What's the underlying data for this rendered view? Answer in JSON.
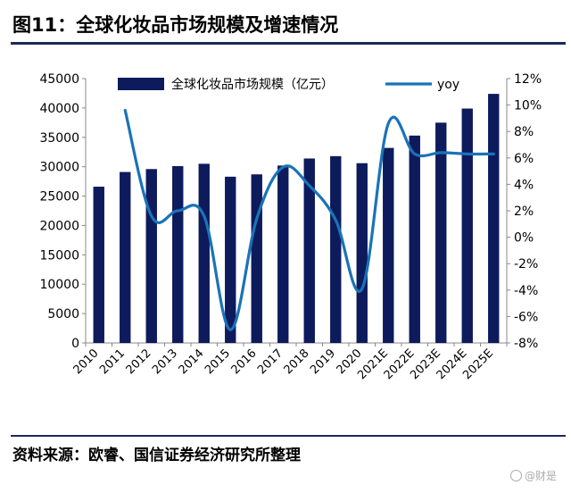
{
  "figure": {
    "title": "图11：全球化妆品市场规模及增速情况",
    "source": "资料来源：欧睿、国信证券经济研究所整理",
    "watermark": "@财是"
  },
  "colors": {
    "bar": "#0d1b5c",
    "line": "#1a73b7",
    "axis": "#888888",
    "rule": "#1b2a5c"
  },
  "chart_data": {
    "type": "bar",
    "categories": [
      "2010",
      "2011",
      "2012",
      "2013",
      "2014",
      "2015",
      "2016",
      "2017",
      "2018",
      "2019",
      "2020",
      "2021E",
      "2022E",
      "2023E",
      "2024E",
      "2025E"
    ],
    "series": [
      {
        "name": "全球化妆品市场规模（亿元）",
        "type": "bar",
        "axis": "left",
        "values": [
          26600,
          29100,
          29600,
          30100,
          30500,
          28300,
          28700,
          30200,
          31400,
          31800,
          30600,
          33200,
          35300,
          37500,
          39900,
          42400
        ]
      },
      {
        "name": "yoy",
        "type": "line",
        "axis": "right",
        "values": [
          null,
          9.6,
          1.6,
          2.0,
          1.6,
          -7.0,
          1.4,
          5.3,
          3.9,
          1.3,
          -3.9,
          8.6,
          6.3,
          6.4,
          6.3,
          6.3
        ]
      }
    ],
    "y_left": {
      "lim": [
        0,
        45000
      ],
      "ticks": [
        "0",
        "5000",
        "10000",
        "15000",
        "20000",
        "25000",
        "30000",
        "35000",
        "40000",
        "45000"
      ]
    },
    "y_right": {
      "lim": [
        -8,
        12
      ],
      "ticks": [
        "-8%",
        "-6%",
        "-4%",
        "-2%",
        "0%",
        "2%",
        "4%",
        "6%",
        "8%",
        "10%",
        "12%"
      ]
    },
    "grid": false,
    "legend_position": "top"
  }
}
